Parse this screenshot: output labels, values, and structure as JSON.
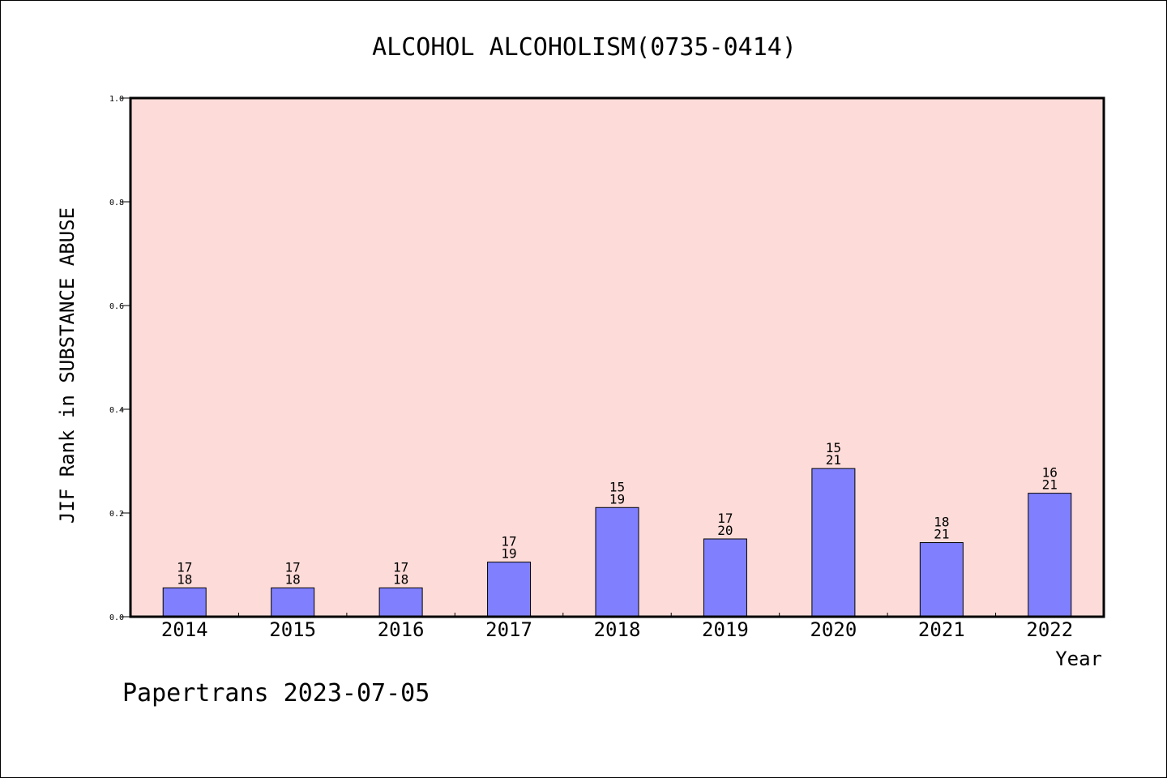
{
  "chart_data": {
    "type": "bar",
    "title": "ALCOHOL ALCOHOLISM(0735-0414)",
    "xlabel": "Year",
    "ylabel": "JIF Rank in SUBSTANCE ABUSE",
    "categories": [
      "2014",
      "2015",
      "2016",
      "2017",
      "2018",
      "2019",
      "2020",
      "2021",
      "2022"
    ],
    "values": [
      0.0556,
      0.0556,
      0.0556,
      0.1053,
      0.2105,
      0.15,
      0.2857,
      0.1429,
      0.2381
    ],
    "rank": [
      17,
      17,
      17,
      17,
      15,
      17,
      15,
      18,
      16
    ],
    "total": [
      18,
      18,
      18,
      19,
      19,
      20,
      21,
      21,
      21
    ],
    "ylim": [
      0,
      1.0
    ],
    "yticks": [
      "0.0",
      "0.2",
      "0.4",
      "0.6",
      "0.8",
      "1.0"
    ],
    "grid": false,
    "colors": {
      "plot_background": "#FDDBD8",
      "bar_fill": "#8080FF",
      "bar_edge": "#000000"
    }
  },
  "footer": "Papertrans 2023-07-05"
}
